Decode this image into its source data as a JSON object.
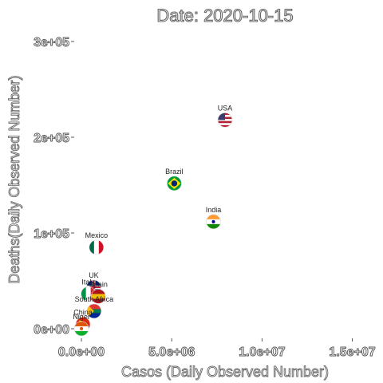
{
  "chart_data": {
    "type": "scatter",
    "title": "Date: 2020-10-15",
    "xlabel": "Casos (Daily Observed Number)",
    "ylabel": "Deaths(Daily Observed Number)",
    "xlim": [
      -400000,
      16300000
    ],
    "ylim": [
      -10000,
      310000
    ],
    "x_ticks": [
      {
        "value": 0,
        "label": "0.0e+00"
      },
      {
        "value": 5000000,
        "label": "5.0e+06"
      },
      {
        "value": 10000000,
        "label": "1.0e+07"
      },
      {
        "value": 15000000,
        "label": "1.5e+07"
      }
    ],
    "y_ticks": [
      {
        "value": 0,
        "label": "0e+00"
      },
      {
        "value": 100000,
        "label": "1e+05"
      },
      {
        "value": 200000,
        "label": "2e+05"
      },
      {
        "value": 300000,
        "label": "3e+05"
      }
    ],
    "grid": false,
    "points": [
      {
        "label": "USA",
        "x": 7950000,
        "y": 218000,
        "icon": "usa-flag-icon",
        "colors": [
          "#b22234",
          "#ffffff",
          "#3c3b6e"
        ]
      },
      {
        "label": "Brazil",
        "x": 5140000,
        "y": 151800,
        "icon": "brazil-flag-icon",
        "colors": [
          "#009c3b",
          "#ffdf00",
          "#002776"
        ]
      },
      {
        "label": "India",
        "x": 7310000,
        "y": 111800,
        "icon": "india-flag-icon",
        "colors": [
          "#ff9933",
          "#ffffff",
          "#138808"
        ]
      },
      {
        "label": "Mexico",
        "x": 830000,
        "y": 85000,
        "icon": "mexico-flag-icon",
        "colors": [
          "#006847",
          "#ffffff",
          "#ce1126"
        ]
      },
      {
        "label": "UK",
        "x": 680000,
        "y": 43400,
        "icon": "uk-flag-icon",
        "colors": [
          "#012169",
          "#ffffff",
          "#c8102e"
        ]
      },
      {
        "label": "Italy",
        "x": 380000,
        "y": 36400,
        "icon": "italy-flag-icon",
        "colors": [
          "#009246",
          "#ffffff",
          "#ce2b37"
        ]
      },
      {
        "label": "Spain",
        "x": 940000,
        "y": 33800,
        "icon": "spain-flag-icon",
        "colors": [
          "#aa151b",
          "#f1bf00",
          "#aa151b"
        ]
      },
      {
        "label": "South Africa",
        "x": 700000,
        "y": 18400,
        "icon": "south-africa-flag-icon",
        "colors": [
          "#007a4d",
          "#ffb612",
          "#de3831"
        ]
      },
      {
        "label": "China",
        "x": 85000,
        "y": 4600,
        "icon": "china-flag-icon",
        "colors": [
          "#de2910",
          "#ffde00",
          "#de2910"
        ]
      },
      {
        "label": "Niger",
        "x": 1300,
        "y": 69,
        "icon": "niger-flag-icon",
        "colors": [
          "#e05206",
          "#ffffff",
          "#0db02b"
        ]
      }
    ]
  }
}
